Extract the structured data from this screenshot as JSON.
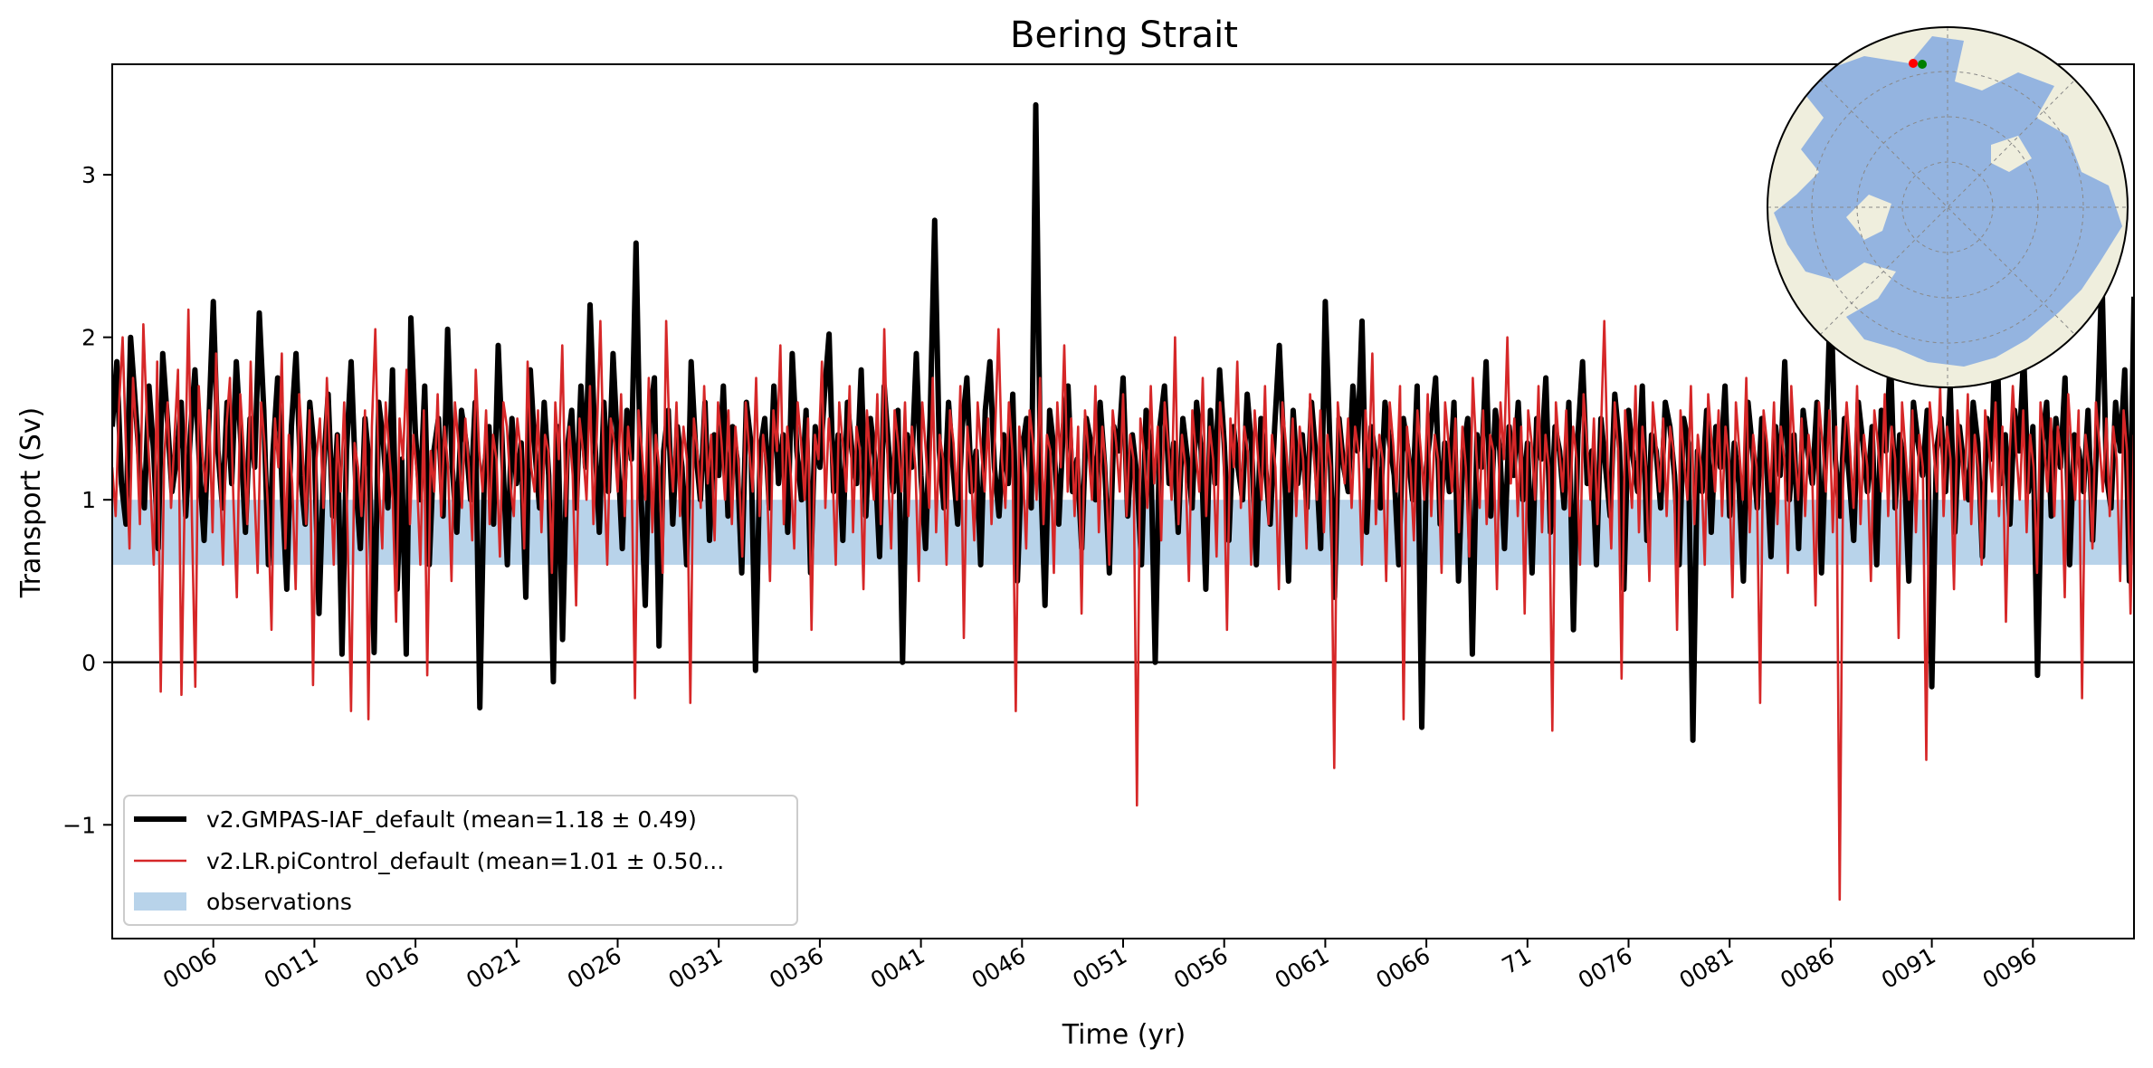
{
  "chart_data": {
    "type": "line",
    "title": "Bering Strait",
    "xlabel": "Time (yr)",
    "ylabel": "Transport (Sv)",
    "xlim": [
      1,
      101
    ],
    "ylim": [
      -1.7,
      3.68
    ],
    "yticks": [
      -1,
      0,
      1,
      2,
      3
    ],
    "ytick_labels": [
      "−1",
      "0",
      "1",
      "2",
      "3"
    ],
    "xticks": [
      6,
      11,
      16,
      21,
      26,
      31,
      36,
      41,
      46,
      51,
      56,
      61,
      66,
      71,
      76,
      81,
      86,
      91,
      96
    ],
    "xtick_labels": [
      "0006",
      "0011",
      "0016",
      "0021",
      "0026",
      "0031",
      "0036",
      "0041",
      "0046",
      "0051",
      "0056",
      "0061",
      "0066",
      "71",
      "0076",
      "0081",
      "0086",
      "0091",
      "0096"
    ],
    "zero_line": 0,
    "observations_band": {
      "label": "observations",
      "y_low": 0.6,
      "y_high": 1.0
    },
    "legend_position": "lower-left",
    "series": [
      {
        "name": "v2.GMPAS-IAF_default",
        "label": "v2.GMPAS-IAF_default (mean=1.18 ± 0.49)",
        "mean": 1.18,
        "std": 0.49,
        "samples_per_year": 12,
        "values": [
          1.45,
          1.85,
          1.1,
          0.85,
          2.0,
          1.6,
          1.2,
          0.95,
          1.7,
          1.3,
          0.7,
          1.9,
          1.5,
          1.05,
          1.25,
          1.6,
          0.9,
          1.4,
          1.8,
          1.2,
          0.75,
          1.45,
          2.22,
          1.3,
          0.95,
          1.6,
          1.1,
          1.85,
          1.35,
          0.8,
          1.5,
          1.2,
          2.15,
          1.55,
          0.6,
          1.3,
          1.75,
          1.05,
          0.45,
          1.45,
          1.9,
          1.15,
          0.85,
          1.6,
          1.3,
          0.3,
          1.2,
          1.65,
          0.9,
          1.4,
          0.05,
          1.3,
          1.85,
          1.1,
          0.7,
          1.5,
          1.2,
          0.06,
          1.6,
          1.35,
          0.95,
          1.8,
          0.45,
          1.25,
          0.05,
          2.12,
          1.4,
          1.0,
          1.7,
          0.6,
          1.3,
          1.5,
          0.9,
          2.05,
          1.2,
          0.8,
          1.55,
          1.35,
          1.0,
          1.6,
          -0.28,
          1.2,
          1.45,
          0.85,
          1.95,
          1.25,
          0.6,
          1.5,
          1.1,
          1.35,
          0.4,
          1.8,
          1.3,
          0.95,
          1.6,
          1.15,
          -0.12,
          1.45,
          0.14,
          1.3,
          1.55,
          0.95,
          1.7,
          1.2,
          2.2,
          1.4,
          0.8,
          1.6,
          1.05,
          1.9,
          1.3,
          0.7,
          1.55,
          1.25,
          2.58,
          1.1,
          0.35,
          1.5,
          1.75,
          0.1,
          1.3,
          1.55,
          0.85,
          1.45,
          1.2,
          0.6,
          1.85,
          1.3,
          1.0,
          1.6,
          0.75,
          1.4,
          1.15,
          1.7,
          0.9,
          1.45,
          1.25,
          0.55,
          1.6,
          1.35,
          -0.05,
          1.3,
          1.5,
          0.95,
          1.7,
          1.1,
          1.4,
          0.8,
          1.9,
          1.3,
          1.0,
          1.55,
          0.55,
          1.45,
          1.2,
          1.65,
          2.02,
          1.05,
          1.4,
          0.75,
          1.6,
          1.3,
          1.1,
          1.8,
          0.9,
          1.5,
          1.25,
          0.65,
          1.7,
          1.3,
          1.05,
          1.55,
          0.0,
          1.4,
          1.2,
          1.9,
          1.15,
          0.7,
          1.5,
          2.72,
          1.3,
          0.95,
          1.6,
          1.2,
          0.85,
          1.45,
          1.75,
          1.05,
          1.3,
          0.6,
          1.55,
          1.85,
          1.2,
          0.9,
          1.4,
          1.1,
          1.65,
          0.5,
          1.3,
          1.5,
          0.95,
          3.43,
          1.2,
          0.35,
          1.55,
          1.3,
          0.85,
          1.45,
          1.7,
          1.05,
          1.25,
          0.7,
          1.5,
          1.35,
          1.0,
          1.6,
          1.2,
          0.55,
          1.45,
          1.3,
          1.75,
          0.9,
          1.4,
          1.15,
          0.6,
          1.55,
          1.3,
          0.0,
          1.45,
          1.7,
          1.1,
          1.35,
          0.8,
          1.5,
          1.25,
          0.95,
          1.6,
          1.3,
          0.45,
          1.55,
          1.1,
          1.8,
          1.35,
          0.75,
          1.45,
          1.2,
          1.0,
          1.65,
          1.3,
          0.6,
          1.5,
          1.2,
          0.85,
          1.45,
          1.95,
          1.3,
          0.5,
          1.55,
          1.1,
          1.4,
          0.95,
          1.6,
          1.25,
          0.7,
          2.22,
          1.35,
          0.4,
          1.5,
          1.2,
          1.05,
          1.7,
          1.3,
          2.1,
          0.8,
          1.45,
          1.25,
          0.95,
          1.6,
          1.35,
          1.15,
          0.6,
          1.5,
          1.3,
          1.0,
          1.7,
          -0.4,
          1.2,
          1.45,
          1.75,
          0.85,
          1.35,
          1.05,
          1.6,
          0.5,
          1.3,
          1.5,
          0.05,
          1.4,
          1.2,
          1.85,
          0.9,
          1.55,
          1.3,
          0.7,
          1.45,
          1.15,
          1.6,
          1.0,
          1.35,
          0.55,
          1.5,
          1.25,
          1.75,
          0.8,
          1.45,
          1.3,
          0.95,
          1.6,
          0.2,
          1.4,
          1.85,
          1.1,
          1.3,
          0.6,
          1.5,
          1.2,
          0.9,
          1.65,
          1.35,
          0.45,
          1.55,
          1.25,
          1.05,
          1.7,
          0.75,
          1.4,
          1.3,
          0.95,
          1.6,
          1.45,
          1.15,
          0.6,
          1.5,
          1.35,
          -0.48,
          1.3,
          1.05,
          1.55,
          0.8,
          1.45,
          1.2,
          1.7,
          0.9,
          1.35,
          1.1,
          0.5,
          1.6,
          1.3,
          0.95,
          1.5,
          1.25,
          0.65,
          1.45,
          1.15,
          1.85,
          1.0,
          1.4,
          0.7,
          1.55,
          1.3,
          1.1,
          1.6,
          0.55,
          1.4,
          2.3,
          1.25,
          0.9,
          1.5,
          1.15,
          0.75,
          1.6,
          1.35,
          1.05,
          1.45,
          0.6,
          1.55,
          1.3,
          1.9,
          0.95,
          1.4,
          1.2,
          0.5,
          1.6,
          1.35,
          1.15,
          1.55,
          -0.15,
          1.3,
          1.5,
          1.05,
          1.7,
          0.8,
          1.45,
          1.2,
          1.0,
          1.6,
          1.35,
          0.65,
          1.5,
          1.25,
          2.2,
          1.1,
          1.4,
          0.85,
          1.55,
          1.3,
          1.9,
          1.05,
          1.45,
          -0.08,
          1.35,
          1.6,
          0.9,
          1.5,
          1.2,
          1.75,
          0.6,
          1.4,
          1.3,
          1.05,
          1.55,
          0.75,
          1.45,
          2.4,
          1.15,
          0.95,
          1.6,
          1.3,
          1.8,
          0.5,
          2.25
        ]
      },
      {
        "name": "v2.LR.piControl_default",
        "label": "v2.LR.piControl_default (mean=1.01 ± 0.50...",
        "mean": 1.01,
        "std": 0.5,
        "samples_per_year": 12,
        "values": [
          1.2,
          0.9,
          1.6,
          2.0,
          1.3,
          0.7,
          1.75,
          1.4,
          0.85,
          2.08,
          1.5,
          1.1,
          0.6,
          1.85,
          -0.18,
          1.25,
          1.6,
          0.95,
          1.4,
          1.8,
          -0.2,
          1.1,
          2.17,
          0.9,
          -0.15,
          1.7,
          1.3,
          1.05,
          1.55,
          0.8,
          1.9,
          1.2,
          0.6,
          1.45,
          1.75,
          1.0,
          0.4,
          1.65,
          1.3,
          0.85,
          1.85,
          1.1,
          0.55,
          1.6,
          1.35,
          0.95,
          0.2,
          1.5,
          1.2,
          1.9,
          0.7,
          1.4,
          1.1,
          0.45,
          1.65,
          1.3,
          0.85,
          1.55,
          -0.14,
          1.25,
          1.5,
          0.95,
          1.75,
          1.2,
          0.6,
          1.4,
          1.05,
          1.6,
          0.8,
          -0.3,
          1.35,
          1.2,
          0.9,
          1.55,
          -0.35,
          1.45,
          2.05,
          1.1,
          0.7,
          1.6,
          1.3,
          1.0,
          0.25,
          1.5,
          1.25,
          1.8,
          0.85,
          1.4,
          1.15,
          0.6,
          1.55,
          -0.08,
          1.3,
          1.05,
          1.65,
          0.9,
          1.45,
          1.2,
          0.5,
          1.6,
          1.35,
          0.95,
          1.5,
          1.2,
          0.75,
          1.8,
          1.3,
          1.05,
          1.55,
          0.85,
          1.4,
          1.25,
          0.65,
          1.6,
          1.45,
          1.1,
          0.9,
          1.5,
          1.3,
          0.7,
          1.85,
          1.2,
          1.05,
          1.55,
          0.8,
          1.4,
          1.3,
          0.55,
          1.6,
          1.25,
          1.95,
          0.9,
          1.45,
          1.15,
          0.35,
          1.5,
          1.3,
          1.0,
          1.7,
          0.85,
          1.4,
          2.1,
          1.2,
          0.6,
          1.5,
          1.35,
          1.05,
          1.65,
          0.9,
          1.45,
          1.2,
          -0.22,
          1.55,
          1.3,
          1.0,
          1.75,
          0.8,
          1.4,
          1.2,
          0.55,
          2.1,
          1.35,
          1.05,
          1.6,
          0.9,
          1.45,
          1.25,
          -0.25,
          1.5,
          1.3,
          0.95,
          1.7,
          1.1,
          1.4,
          0.75,
          1.6,
          1.35,
          1.0,
          1.55,
          0.85,
          1.45,
          1.2,
          0.65,
          1.6,
          1.3,
          1.05,
          1.75,
          0.9,
          1.4,
          1.2,
          0.5,
          1.55,
          1.3,
          1.95,
          0.85,
          1.45,
          1.15,
          0.7,
          1.6,
          1.35,
          1.0,
          1.5,
          0.2,
          1.4,
          1.25,
          1.85,
          0.95,
          1.5,
          1.2,
          0.6,
          1.6,
          1.35,
          1.05,
          1.7,
          0.8,
          1.45,
          1.3,
          0.45,
          1.55,
          1.25,
          1.0,
          1.65,
          0.85,
          2.05,
          1.2,
          0.7,
          1.55,
          1.35,
          1.05,
          1.6,
          0.9,
          1.45,
          1.2,
          0.5,
          1.6,
          1.3,
          0.95,
          1.75,
          0.8,
          1.4,
          1.25,
          0.6,
          1.55,
          1.35,
          1.0,
          1.7,
          0.15,
          1.45,
          1.2,
          0.75,
          1.6,
          1.3,
          1.05,
          1.5,
          0.85,
          1.4,
          2.05,
          1.25,
          0.95,
          1.6,
          1.3,
          -0.3,
          1.45,
          1.2,
          0.7,
          1.55,
          1.35,
          1.0,
          1.75,
          0.85,
          1.4,
          1.3,
          0.55,
          1.6,
          1.2,
          1.95,
          1.05,
          1.5,
          0.9,
          1.45,
          0.3,
          1.55,
          1.3,
          1.0,
          1.7,
          0.8,
          1.45,
          1.2,
          0.6,
          1.55,
          1.35,
          1.05,
          1.65,
          0.9,
          1.4,
          1.25,
          -0.88,
          1.5,
          1.3,
          0.95,
          1.7,
          1.1,
          1.45,
          0.75,
          1.6,
          1.35,
          1.0,
          2.0,
          0.85,
          1.4,
          1.2,
          0.5,
          1.55,
          1.3,
          1.05,
          1.75,
          0.9,
          1.45,
          1.25,
          0.65,
          1.6,
          1.35,
          0.2,
          1.5,
          1.2,
          1.85,
          0.95,
          1.45,
          1.3,
          0.6,
          1.55,
          1.25,
          1.0,
          1.7,
          0.85,
          1.4,
          1.2,
          0.45,
          1.6,
          1.35,
          1.05,
          1.5,
          0.9,
          1.45,
          1.25,
          0.7,
          1.65,
          1.3,
          1.0,
          1.55,
          0.8,
          1.4,
          1.2,
          -0.65,
          1.6,
          1.35,
          1.1,
          1.5,
          0.95,
          1.45,
          1.3,
          0.6,
          1.55,
          1.2,
          1.9,
          0.85,
          1.4,
          1.25,
          0.5,
          1.6,
          1.35,
          1.05,
          1.7,
          -0.35,
          1.45,
          1.2,
          0.75,
          1.55,
          1.3,
          1.0,
          1.65,
          0.9,
          1.4,
          1.25,
          0.55,
          1.6,
          1.35,
          1.05,
          1.5,
          0.8,
          1.45,
          1.2,
          0.65,
          1.75,
          1.3,
          0.95,
          1.55,
          0.85,
          1.4,
          1.3,
          0.45,
          1.6,
          1.25,
          2.0,
          1.1,
          1.5,
          0.9,
          1.45,
          0.3,
          1.55,
          1.35,
          1.0,
          1.7,
          0.8,
          1.4,
          1.2,
          -0.42,
          1.6,
          1.3,
          1.05,
          1.55,
          0.9,
          1.45,
          1.25,
          0.6,
          1.65,
          1.35,
          1.0,
          1.5,
          0.85,
          1.4,
          2.1,
          1.2,
          0.7,
          1.6,
          1.3,
          -0.1,
          1.55,
          1.25,
          0.95,
          1.7,
          0.8,
          1.45,
          1.2,
          0.5,
          1.6,
          1.35,
          1.05,
          1.5,
          0.9,
          1.45,
          1.3,
          0.2,
          1.55,
          1.25,
          1.0,
          1.7,
          0.85,
          1.4,
          1.2,
          0.6,
          1.65,
          1.35,
          1.05,
          1.55,
          0.9,
          1.45,
          1.25,
          0.4,
          1.6,
          1.3,
          1.0,
          1.75,
          0.8,
          1.4,
          1.2,
          -0.25,
          1.55,
          1.35,
          1.05,
          1.6,
          0.85,
          1.45,
          1.25,
          0.55,
          1.7,
          1.3,
          1.0,
          1.5,
          0.9,
          1.4,
          1.2,
          0.35,
          1.6,
          1.35,
          1.05,
          1.55,
          0.8,
          1.45,
          -1.46,
          1.25,
          1.6,
          1.3,
          0.95,
          1.7,
          0.85,
          1.4,
          1.2,
          0.5,
          1.55,
          1.35,
          1.05,
          1.65,
          0.9,
          1.45,
          1.25,
          0.15,
          1.6,
          1.3,
          1.0,
          1.55,
          0.8,
          1.4,
          1.2,
          -0.6,
          1.6,
          1.35,
          1.05,
          1.7,
          0.9,
          1.45,
          1.25,
          0.45,
          1.55,
          1.3,
          1.0,
          1.65,
          0.85,
          1.4,
          1.2,
          0.6,
          1.55,
          1.35,
          1.05,
          1.6,
          0.9,
          1.45,
          0.25,
          1.25,
          1.7,
          1.3,
          1.0,
          1.55,
          0.8,
          1.4,
          1.2,
          0.55,
          1.6,
          1.35,
          1.05,
          1.5,
          0.9,
          1.45,
          1.25,
          0.4,
          1.65,
          1.3,
          1.0,
          1.55,
          -0.22,
          1.4,
          1.2,
          0.7,
          1.6,
          1.35,
          1.05,
          1.5,
          0.9,
          1.45,
          1.25,
          0.5,
          1.55,
          1.3,
          0.3,
          1.4
        ]
      }
    ],
    "colors": {
      "series_0": "#000000",
      "series_1": "#d62728",
      "observations": "#b8d3ea",
      "ocean": "#94b4e0",
      "land": "#efeedd"
    },
    "inset_map": {
      "description_icon": "polar-map-icon",
      "markers": [
        "#ff0000",
        "#008000"
      ]
    }
  }
}
